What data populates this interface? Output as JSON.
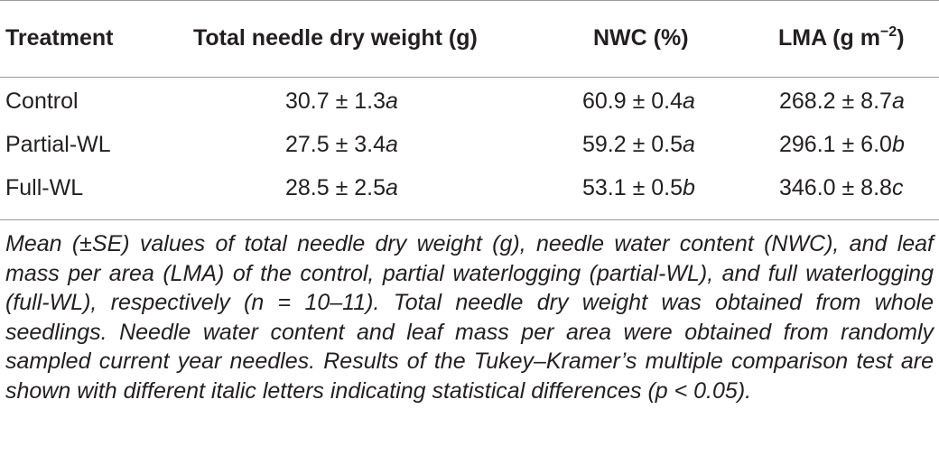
{
  "table": {
    "headers": {
      "treatment": "Treatment",
      "dry_weight": "Total needle dry weight (g)",
      "nwc": "NWC (%)",
      "lma_prefix": "LMA (g m",
      "lma_exp": "−2",
      "lma_suffix": ")"
    },
    "rows": [
      {
        "treatment": "Control",
        "dry_weight": {
          "value": "30.7 ± 1.3",
          "letter": "a"
        },
        "nwc": {
          "value": "60.9 ± 0.4",
          "letter": "a"
        },
        "lma": {
          "value": "268.2 ± 8.7",
          "letter": "a"
        }
      },
      {
        "treatment": "Partial-WL",
        "dry_weight": {
          "value": "27.5 ± 3.4",
          "letter": "a"
        },
        "nwc": {
          "value": "59.2 ± 0.5",
          "letter": "a"
        },
        "lma": {
          "value": "296.1 ± 6.0",
          "letter": "b"
        }
      },
      {
        "treatment": "Full-WL",
        "dry_weight": {
          "value": "28.5 ± 2.5",
          "letter": "a"
        },
        "nwc": {
          "value": "53.1 ± 0.5",
          "letter": "b"
        },
        "lma": {
          "value": "346.0 ± 8.8",
          "letter": "c"
        }
      }
    ]
  },
  "caption": "Mean (±SE) values of total needle dry weight (g), needle water content (NWC), and leaf mass per area (LMA) of the control, partial waterlogging (partial-WL), and full waterlogging (full-WL), respectively (n = 10–11). Total needle dry weight was obtained from whole seedlings. Needle water content and leaf mass per area were obtained from randomly sampled current year needles. Results of the Tukey–Kramer’s multiple comparison test are shown with different italic letters indicating statistical differences (p < 0.05)."
}
